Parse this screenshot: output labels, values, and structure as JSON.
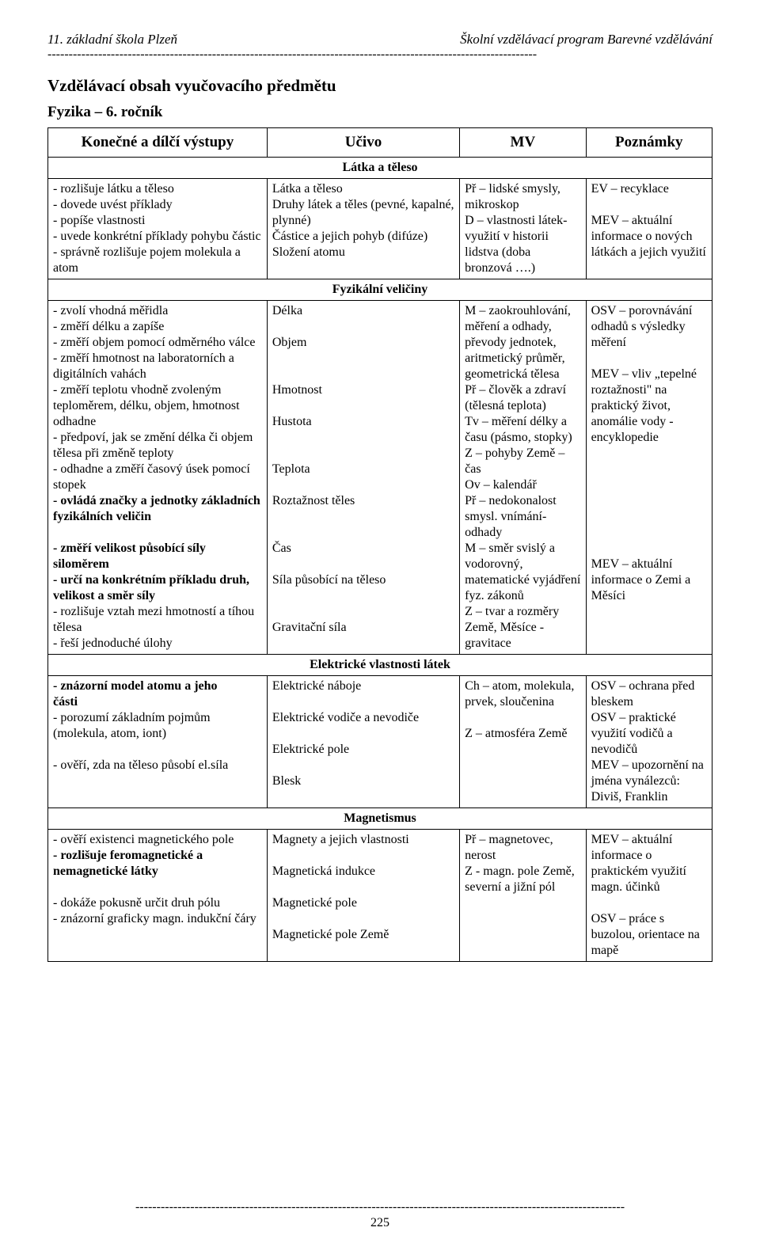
{
  "header": {
    "left": "11. základní škola Plzeň",
    "right": "Školní vzdělávací program Barevné vzdělávání"
  },
  "dashes": "--------------------------------------------------------------------------------------------------------------------",
  "title": "Vzdělávací obsah vyučovacího předmětu",
  "subject": "Fyzika – 6. ročník",
  "columns": {
    "c1": "Konečné a dílčí výstupy",
    "c2": "Učivo",
    "c3": "MV",
    "c4": "Poznámky"
  },
  "sections": [
    {
      "heading": "Látka a těleso",
      "rows": [
        {
          "c1": "- rozlišuje látku a těleso\n- dovede uvést příklady\n- popíše vlastnosti\n- uvede konkrétní příklady pohybu částic\n- správně rozlišuje pojem molekula a atom",
          "c2": "Látka a těleso\nDruhy látek a těles (pevné, kapalné, plynné)\nČástice a jejich pohyb (difúze)\nSložení atomu",
          "c3": "Př – lidské smysly, mikroskop\nD – vlastnosti látek- využití v historii lidstva (doba bronzová ….)",
          "c4": "EV – recyklace\n\nMEV – aktuální informace o nových látkách a jejich využití"
        }
      ]
    },
    {
      "heading": "Fyzikální veličiny",
      "rows": [
        {
          "c1": "- zvolí vhodná měřidla\n- změří délku a zapíše\n- změří objem pomocí odměrného válce\n- změří hmotnost na laboratorních a digitálních vahách\n- změří teplotu vhodně zvoleným teploměrem, délku, objem, hmotnost odhadne\n- předpoví, jak se změní délka či objem tělesa při změně teploty\n- odhadne a změří časový úsek pomocí stopek\n<b>- ovládá značky a jednotky základních fyzikálních veličin</b>\n\n<b>- změří velikost působící síly siloměrem</b>\n<b>- určí na konkrétním příkladu druh, velikost a směr síly</b>\n- rozlišuje vztah mezi hmotností a tíhou tělesa\n- řeší jednoduché úlohy",
          "c2": "Délka\n\nObjem\n\n\nHmotnost\n\nHustota\n\n\nTeplota\n\nRoztažnost těles\n\n\nČas\n\nSíla působící na těleso\n\n\nGravitační síla",
          "c3": "M – zaokrouhlování, měření a odhady, převody jednotek, aritmetický průměr, geometrická tělesa\nPř – člověk a zdraví (tělesná teplota)\nTv – měření délky a času (pásmo, stopky)\nZ – pohyby Země – čas\nOv – kalendář\nPř – nedokonalost smysl. vnímání- odhady\nM – směr svislý a vodorovný, matematické vyjádření fyz. zákonů\nZ – tvar a rozměry Země, Měsíce - gravitace",
          "c4": "OSV – porovnávání odhadů s výsledky měření\n\nMEV – vliv „tepelné roztažnosti\" na praktický život, anomálie vody - encyklopedie\n\n\n\n\n\n\n\nMEV – aktuální informace o Zemi a Měsíci"
        }
      ]
    },
    {
      "heading": "Elektrické vlastnosti látek",
      "rows": [
        {
          "c1": "<b>- znázorní model atomu a jeho</b>\n    <b>části</b>\n- porozumí základním pojmům\n   (molekula, atom, iont)\n\n- ověří, zda na těleso působí el.síla",
          "c2": "Elektrické náboje\n\nElektrické vodiče a nevodiče\n\nElektrické pole\n\nBlesk",
          "c3": "Ch – atom, molekula, prvek, sloučenina\n\nZ – atmosféra Země",
          "c4": "OSV – ochrana před bleskem\nOSV – praktické využití vodičů a nevodičů\nMEV – upozornění na jména vynálezců: Diviš, Franklin"
        }
      ]
    },
    {
      "heading": "Magnetismus",
      "rows": [
        {
          "c1": "- ověří existenci magnetického pole\n<b>- rozlišuje feromagnetické a nemagnetické látky</b>\n\n- dokáže pokusně určit druh pólu\n- znázorní graficky magn. indukční čáry",
          "c2": "Magnety a jejich vlastnosti\n\nMagnetická indukce\n\nMagnetické pole\n\nMagnetické pole Země",
          "c3": "Př – magnetovec, nerost\nZ  -  magn. pole Země, severní a jižní pól",
          "c4": "MEV – aktuální informace o praktickém využití magn. účinků\n\nOSV – práce s buzolou, orientace na mapě"
        }
      ]
    }
  ],
  "footer": {
    "page_num": "225"
  }
}
